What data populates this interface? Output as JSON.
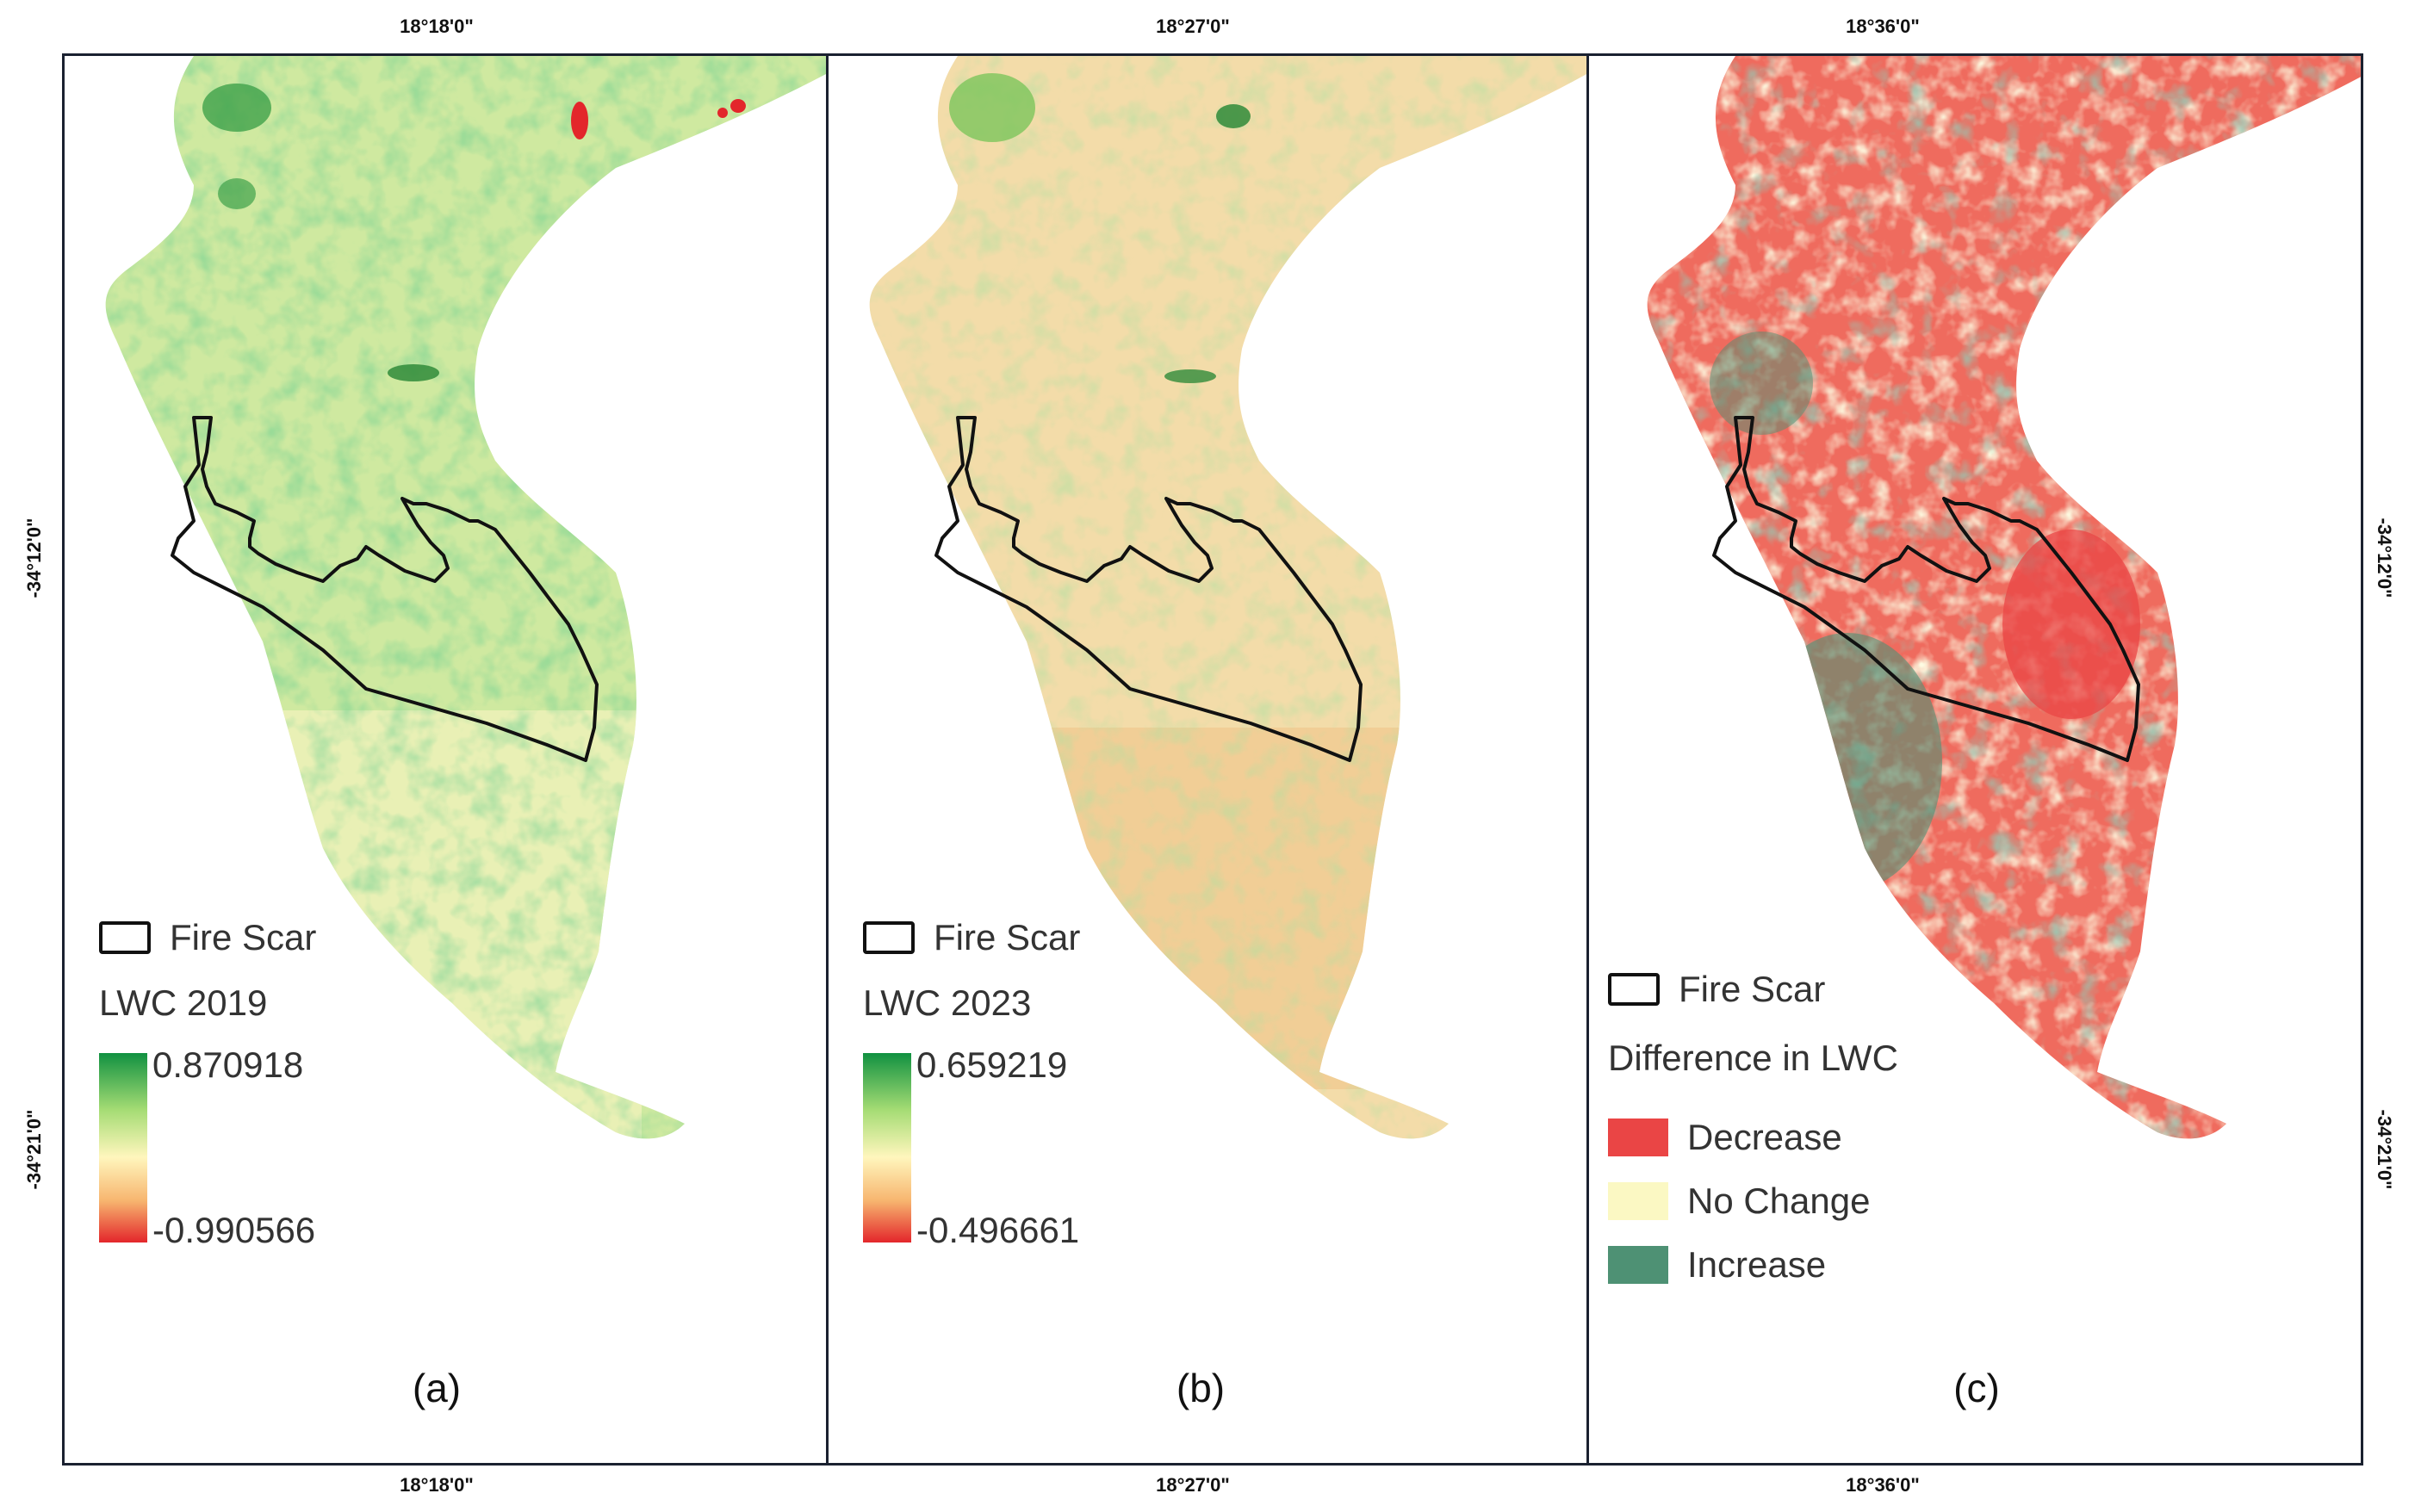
{
  "coordinates": {
    "top": [
      "18°18'0\"",
      "18°27'0\"",
      "18°36'0\""
    ],
    "bottom": [
      "18°18'0\"",
      "18°27'0\"",
      "18°36'0\""
    ],
    "left": [
      "-34°12'0\"",
      "-34°21'0\""
    ],
    "right": [
      "-34°12'0\"",
      "-34°21'0\""
    ]
  },
  "panels": [
    {
      "label": "(a)",
      "fire_scar_label": "Fire Scar",
      "legend_title": "LWC 2019",
      "ramp_max": "0.870918",
      "ramp_min": "-0.990566"
    },
    {
      "label": "(b)",
      "fire_scar_label": "Fire Scar",
      "legend_title": "LWC 2023",
      "ramp_max": "0.659219",
      "ramp_min": "-0.496661"
    },
    {
      "label": "(c)",
      "fire_scar_label": "Fire Scar",
      "legend_title": "Difference in LWC",
      "classes": [
        {
          "label": "Decrease",
          "color": "#ea4545"
        },
        {
          "label": "No Change",
          "color": "#fbf8c3"
        },
        {
          "label": "Increase",
          "color": "#4e9174"
        }
      ]
    }
  ],
  "colors": {
    "ramp_high": "#119141",
    "ramp_mid_high": "#a5dc74",
    "ramp_mid": "#fff6bd",
    "ramp_mid_low": "#f7b56f",
    "ramp_low": "#e3262b",
    "map_a_base": "#cfe9a0",
    "map_b_base": "#f3dca9",
    "map_c_base": "#ef6b5e",
    "fire_scar_outline": "#111111",
    "frame": "#1a2130"
  }
}
